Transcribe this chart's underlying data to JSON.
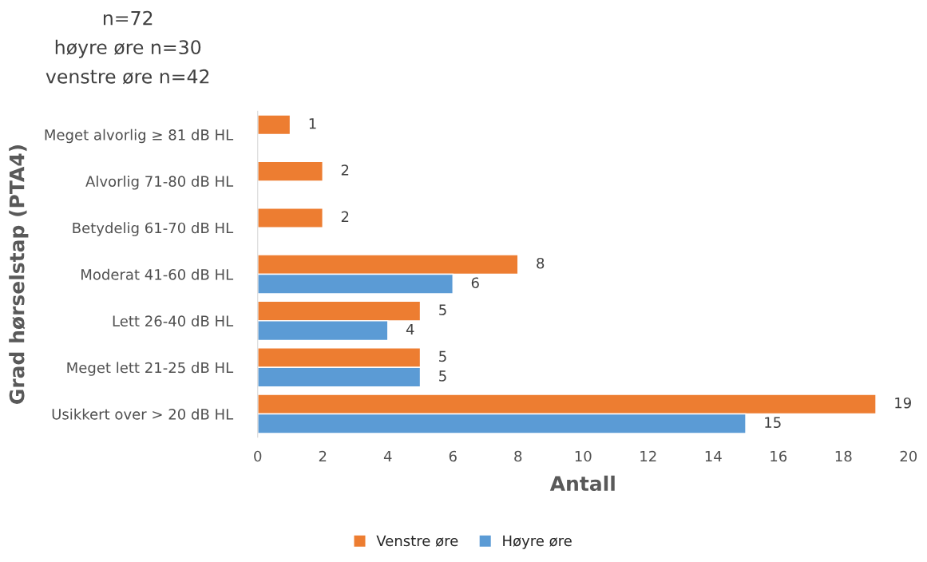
{
  "chart_data": {
    "type": "bar",
    "orientation": "horizontal",
    "categories": [
      "Meget alvorlig ≥ 81 dB HL",
      "Alvorlig 71-80 dB HL",
      "Betydelig 61-70 dB HL",
      "Moderat 41-60 dB HL",
      "Lett 26-40 dB HL",
      "Meget lett 21-25 dB HL",
      "Usikkert over > 20 dB HL"
    ],
    "series": [
      {
        "name": "Venstre øre",
        "color": "#ed7d31",
        "values": [
          1,
          2,
          2,
          8,
          5,
          5,
          19
        ]
      },
      {
        "name": "Høyre øre",
        "color": "#5b9bd5",
        "values": [
          null,
          null,
          null,
          6,
          4,
          5,
          15
        ]
      }
    ],
    "xlabel": "Antall",
    "ylabel": "Grad hørselstap (PTA4)",
    "xlim": [
      0,
      20
    ],
    "xticks": [
      0,
      2,
      4,
      6,
      8,
      10,
      12,
      14,
      16,
      18,
      20
    ],
    "annotations": [
      "n=72",
      "høyre øre n=30",
      "venstre øre n=42"
    ],
    "data_labels": true,
    "grid": false,
    "legend": "bottom"
  }
}
